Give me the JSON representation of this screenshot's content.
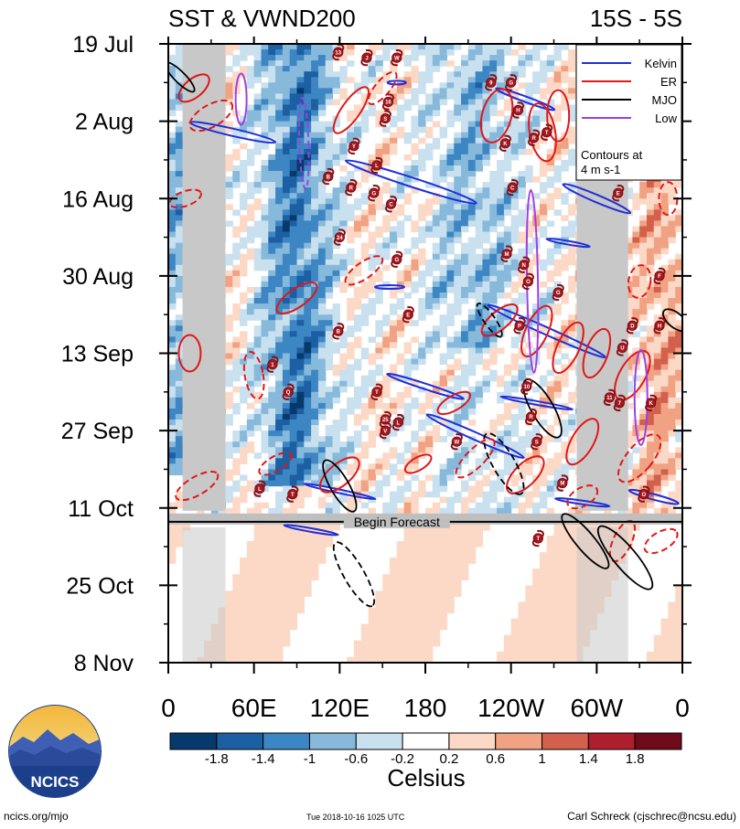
{
  "chart_data": {
    "type": "heatmap",
    "title_left": "SST & VWND200",
    "title_right": "15S - 5S",
    "x_ticks": [
      "0",
      "60E",
      "120E",
      "180",
      "120W",
      "60W",
      "0"
    ],
    "x_tick_lon": [
      0,
      60,
      120,
      180,
      240,
      300,
      360
    ],
    "y_ticks": [
      "19 Jul",
      "2 Aug",
      "16 Aug",
      "30 Aug",
      "13 Sep",
      "27 Sep",
      "11 Oct",
      "25 Oct",
      "8 Nov"
    ],
    "y_tick_day": [
      0,
      14,
      28,
      42,
      56,
      70,
      84,
      98,
      112
    ],
    "forecast_day": 86.5,
    "forecast_label": "Begin Forecast",
    "legend": {
      "entries": [
        {
          "label": "Kelvin",
          "color": "#1f2fd8"
        },
        {
          "label": "ER",
          "color": "#e01818"
        },
        {
          "label": "MJO",
          "color": "#000000"
        },
        {
          "label": "Low",
          "color": "#a040e0"
        }
      ],
      "note_line1": "Contours at",
      "note_line2": "4 m s-1"
    },
    "colorbar": {
      "label": "Celsius",
      "tick_labels": [
        "-1.8",
        "-1.4",
        "-1",
        "-0.6",
        "-0.2",
        "0.2",
        "0.6",
        "1",
        "1.4",
        "1.8"
      ],
      "colors": [
        "#073a6c",
        "#1c5fa3",
        "#3d86c4",
        "#87b9db",
        "#c9e0ef",
        "#ffffff",
        "#fcd9c6",
        "#f0a283",
        "#d2604d",
        "#ad1f2c",
        "#6e0a1a"
      ]
    },
    "land_masks_lon": [
      [
        10,
        40
      ],
      [
        286,
        322
      ]
    ],
    "land_mask_after_forecast_lon": [
      [
        -5,
        370
      ]
    ],
    "cyclone_markers": [
      {
        "lon": 119,
        "day": 1.5,
        "label": "13"
      },
      {
        "lon": 139,
        "day": 2.5,
        "label": "J"
      },
      {
        "lon": 160,
        "day": 2.5,
        "label": "W"
      },
      {
        "lon": 226,
        "day": 7,
        "label": "9"
      },
      {
        "lon": 240,
        "day": 7,
        "label": "G"
      },
      {
        "lon": 245,
        "day": 12,
        "label": "H"
      },
      {
        "lon": 154,
        "day": 10.5,
        "label": "16"
      },
      {
        "lon": 152,
        "day": 13.5,
        "label": "S"
      },
      {
        "lon": 130,
        "day": 18.5,
        "label": "Y"
      },
      {
        "lon": 146,
        "day": 22,
        "label": "L"
      },
      {
        "lon": 112,
        "day": 24,
        "label": "B"
      },
      {
        "lon": 128,
        "day": 26,
        "label": "R"
      },
      {
        "lon": 144,
        "day": 27,
        "label": "G"
      },
      {
        "lon": 156,
        "day": 29,
        "label": "C"
      },
      {
        "lon": 236,
        "day": 18,
        "label": "K"
      },
      {
        "lon": 256,
        "day": 17,
        "label": "R"
      },
      {
        "lon": 265,
        "day": 16,
        "label": "T"
      },
      {
        "lon": 241,
        "day": 26,
        "label": "C"
      },
      {
        "lon": 315,
        "day": 27,
        "label": "E"
      },
      {
        "lon": 120,
        "day": 35,
        "label": "24"
      },
      {
        "lon": 160,
        "day": 39,
        "label": "G"
      },
      {
        "lon": 237,
        "day": 38,
        "label": "M"
      },
      {
        "lon": 249,
        "day": 40,
        "label": "N"
      },
      {
        "lon": 252,
        "day": 43,
        "label": "O"
      },
      {
        "lon": 273,
        "day": 45,
        "label": "G"
      },
      {
        "lon": 344,
        "day": 42,
        "label": "F"
      },
      {
        "lon": 168,
        "day": 49,
        "label": "E"
      },
      {
        "lon": 119,
        "day": 52,
        "label": "B"
      },
      {
        "lon": 246,
        "day": 51,
        "label": "P"
      },
      {
        "lon": 325,
        "day": 51,
        "label": "D"
      },
      {
        "lon": 344,
        "day": 51,
        "label": "H"
      },
      {
        "lon": 318,
        "day": 55,
        "label": "U"
      },
      {
        "lon": 73,
        "day": 58,
        "label": "1"
      },
      {
        "lon": 84,
        "day": 63,
        "label": "Q"
      },
      {
        "lon": 146,
        "day": 63,
        "label": "T"
      },
      {
        "lon": 251,
        "day": 62,
        "label": "10"
      },
      {
        "lon": 309,
        "day": 64,
        "label": "11"
      },
      {
        "lon": 316,
        "day": 65,
        "label": "7"
      },
      {
        "lon": 338,
        "day": 65,
        "label": "K"
      },
      {
        "lon": 152,
        "day": 68,
        "label": "25"
      },
      {
        "lon": 161,
        "day": 68.5,
        "label": "L"
      },
      {
        "lon": 152,
        "day": 70,
        "label": "V"
      },
      {
        "lon": 254,
        "day": 67.5,
        "label": "R"
      },
      {
        "lon": 258,
        "day": 72,
        "label": "S"
      },
      {
        "lon": 202,
        "day": 72,
        "label": "W"
      },
      {
        "lon": 64,
        "day": 80.5,
        "label": "L"
      },
      {
        "lon": 87,
        "day": 81.5,
        "label": "T"
      },
      {
        "lon": 276,
        "day": 79.5,
        "label": "M"
      },
      {
        "lon": 333,
        "day": 81.5,
        "label": "O"
      },
      {
        "lon": 259,
        "day": 89.5,
        "label": "T"
      }
    ]
  },
  "footer": {
    "logo_text": "NCICS",
    "site": "ncics.org/mjo",
    "timestamp": "Tue 2018-10-16 1025 UTC",
    "author": "Carl Schreck (cjschrec@ncsu.edu)"
  }
}
